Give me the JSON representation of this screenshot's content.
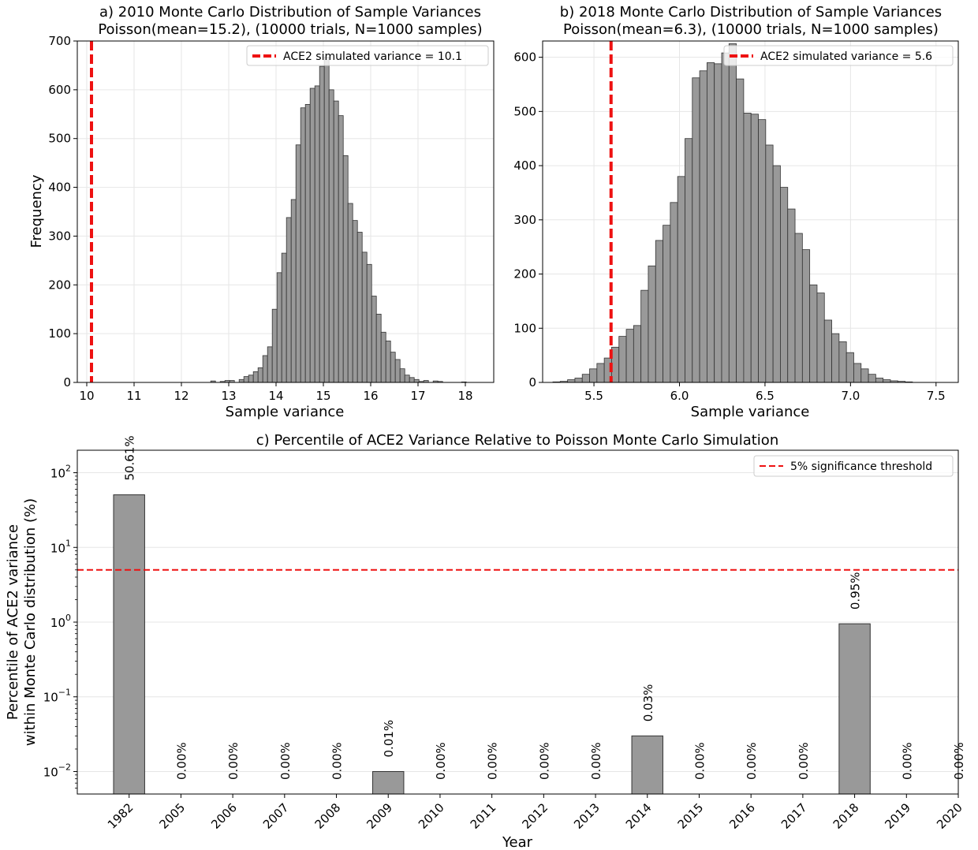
{
  "chart_data": [
    {
      "type": "bar",
      "title_line1": "a) 2010 Monte Carlo Distribution of Sample Variances",
      "title_line2": "Poisson(mean=15.2), (10000 trials, N=1000 samples)",
      "xlabel": "Sample variance",
      "ylabel": "Frequency",
      "xlim": [
        9.8,
        18.6
      ],
      "ylim": [
        0,
        700
      ],
      "xticks": [
        "10",
        "11",
        "12",
        "13",
        "14",
        "15",
        "16",
        "17",
        "18"
      ],
      "yticks": [
        "0",
        "100",
        "200",
        "300",
        "400",
        "500",
        "600",
        "700"
      ],
      "grid": true,
      "legend_position": "top-right",
      "legend_label": "ACE2 simulated variance = 10.1",
      "reference_line_x": 10.1,
      "bar_color": "#999999",
      "line_color": "#ee1111",
      "bins": {
        "start": 12.62,
        "width": 0.1,
        "values": [
          3,
          0,
          2,
          4,
          4,
          0,
          6,
          12,
          15,
          22,
          30,
          55,
          73,
          150,
          225,
          265,
          338,
          375,
          487,
          563,
          570,
          603,
          608,
          648,
          667,
          600,
          577,
          547,
          465,
          367,
          332,
          308,
          267,
          242,
          177,
          140,
          103,
          85,
          62,
          47,
          28,
          15,
          10,
          6,
          2,
          4,
          0,
          3,
          2,
          0,
          0,
          0,
          0,
          1
        ]
      }
    },
    {
      "type": "bar",
      "title_line1": "b) 2018 Monte Carlo Distribution of Sample Variances",
      "title_line2": "Poisson(mean=6.3), (10000 trials, N=1000 samples)",
      "xlabel": "Sample variance",
      "ylabel": "",
      "xlim": [
        5.2,
        7.63
      ],
      "ylim": [
        0,
        630
      ],
      "xticks": [
        "5.5",
        "6.0",
        "6.5",
        "7.0",
        "7.5"
      ],
      "xtick_values": [
        5.5,
        6.0,
        6.5,
        7.0,
        7.5
      ],
      "yticks": [
        "0",
        "100",
        "200",
        "300",
        "400",
        "500",
        "600"
      ],
      "grid": true,
      "legend_position": "top-right",
      "legend_label": "ACE2 simulated variance = 5.6",
      "reference_line_x": 5.6,
      "bar_color": "#999999",
      "line_color": "#ee1111",
      "bins": {
        "start": 5.26,
        "width": 0.0429,
        "values": [
          1,
          2,
          5,
          8,
          15,
          25,
          35,
          45,
          65,
          85,
          98,
          105,
          170,
          215,
          262,
          290,
          332,
          380,
          450,
          562,
          575,
          590,
          588,
          608,
          625,
          560,
          497,
          495,
          485,
          438,
          400,
          360,
          320,
          275,
          245,
          180,
          165,
          115,
          90,
          75,
          55,
          35,
          25,
          15,
          8,
          5,
          3,
          2,
          1,
          0,
          0,
          0,
          0,
          0,
          0,
          0,
          0,
          0,
          0,
          0
        ]
      }
    },
    {
      "type": "bar",
      "title": "c) Percentile of ACE2 Variance Relative to Poisson Monte Carlo Simulation",
      "xlabel": "Year",
      "ylabel_line1": "Percentile of ACE2 variance",
      "ylabel_line2": "within Monte Carlo distribution (%)",
      "yscale": "log",
      "ylim": [
        0.005,
        200
      ],
      "yticks": [
        {
          "value": 0.01,
          "base": "10",
          "exp": "−2"
        },
        {
          "value": 0.1,
          "base": "10",
          "exp": "−1"
        },
        {
          "value": 1,
          "base": "10",
          "exp": "0"
        },
        {
          "value": 10,
          "base": "10",
          "exp": "1"
        },
        {
          "value": 100,
          "base": "10",
          "exp": "2"
        }
      ],
      "grid": true,
      "legend_position": "top-right",
      "legend_label": "5% significance threshold",
      "threshold": 5,
      "bar_color": "#999999",
      "line_color": "#ee1111",
      "categories": [
        "1982",
        "2005",
        "2006",
        "2007",
        "2008",
        "2009",
        "2010",
        "2011",
        "2012",
        "2013",
        "2014",
        "2015",
        "2016",
        "2017",
        "2018",
        "2019",
        "2020"
      ],
      "values": [
        50.61,
        0,
        0,
        0,
        0,
        0.01,
        0,
        0,
        0,
        0,
        0.03,
        0,
        0,
        0,
        0.95,
        0,
        0
      ],
      "value_labels": [
        "50.61%",
        "0.00%",
        "0.00%",
        "0.00%",
        "0.00%",
        "0.01%",
        "0.00%",
        "0.00%",
        "0.00%",
        "0.00%",
        "0.03%",
        "0.00%",
        "0.00%",
        "0.00%",
        "0.95%",
        "0.00%",
        "0.00%"
      ]
    }
  ]
}
